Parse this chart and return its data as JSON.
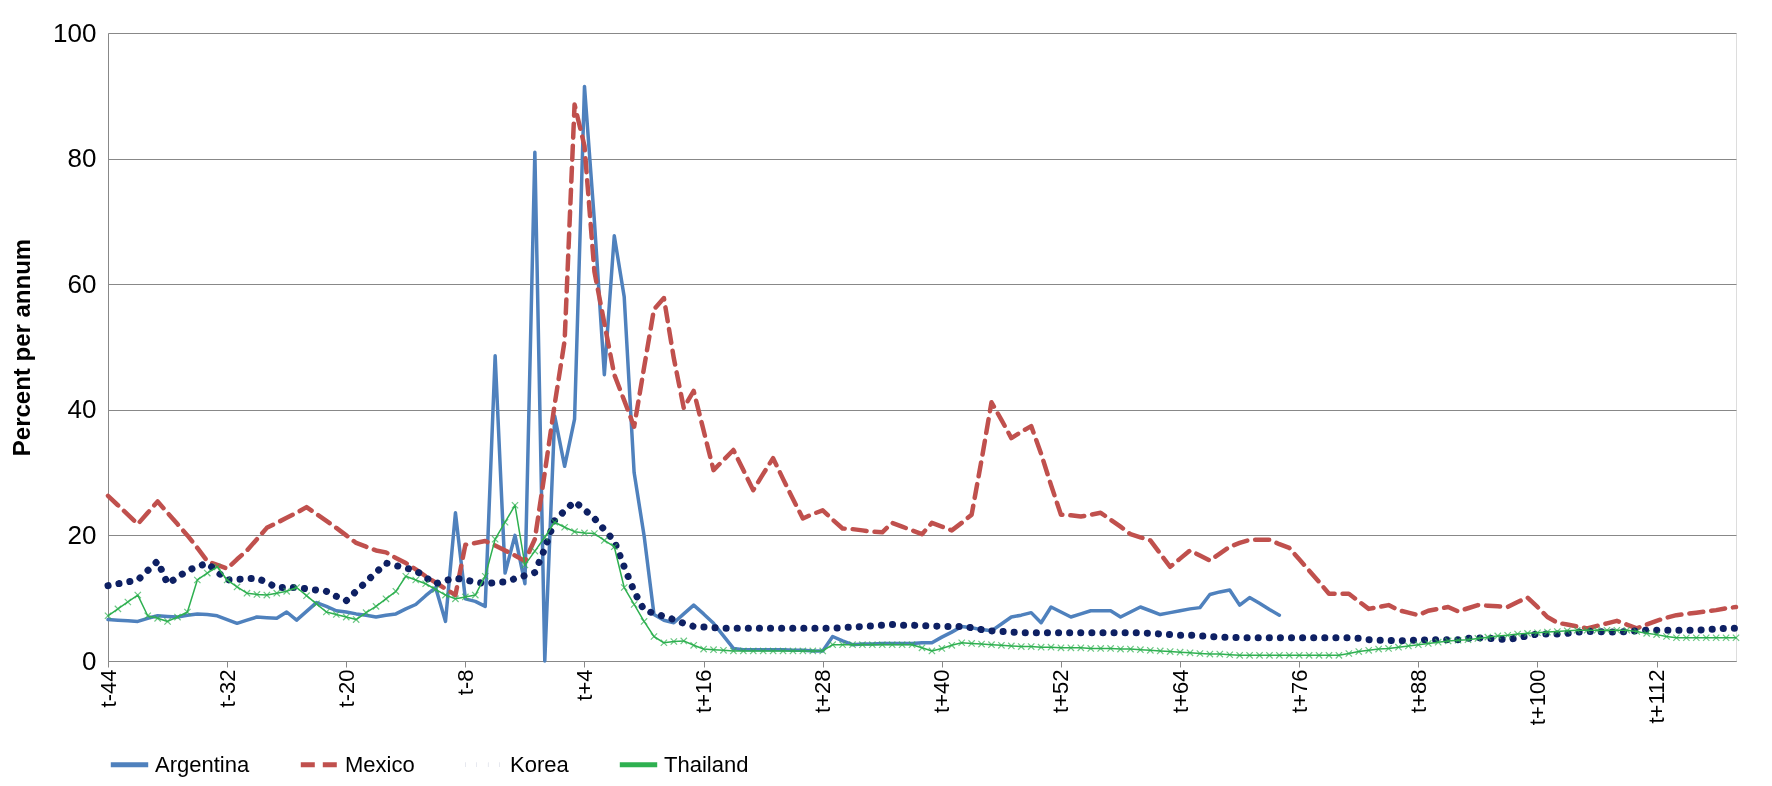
{
  "chart_data": {
    "type": "line",
    "ylabel": "Percent per annum",
    "categories": [
      "t-44",
      null,
      null,
      null,
      null,
      null,
      null,
      null,
      null,
      null,
      null,
      null,
      "t-32",
      null,
      null,
      null,
      null,
      null,
      null,
      null,
      null,
      null,
      null,
      null,
      "t-20",
      null,
      null,
      null,
      null,
      null,
      null,
      null,
      null,
      null,
      null,
      null,
      "t-8",
      null,
      null,
      null,
      null,
      null,
      null,
      null,
      null,
      null,
      null,
      null,
      "t+4",
      null,
      null,
      null,
      null,
      null,
      null,
      null,
      null,
      null,
      null,
      null,
      "t+16",
      null,
      null,
      null,
      null,
      null,
      null,
      null,
      null,
      null,
      null,
      null,
      "t+28",
      null,
      null,
      null,
      null,
      null,
      null,
      null,
      null,
      null,
      null,
      null,
      "t+40",
      null,
      null,
      null,
      null,
      null,
      null,
      null,
      null,
      null,
      null,
      null,
      "t+52",
      null,
      null,
      null,
      null,
      null,
      null,
      null,
      null,
      null,
      null,
      null,
      "t+64",
      null,
      null,
      null,
      null,
      null,
      null,
      null,
      null,
      null,
      null,
      null,
      "t+76",
      null,
      null,
      null,
      null,
      null,
      null,
      null,
      null,
      null,
      null,
      null,
      "t+88",
      null,
      null,
      null,
      null,
      null,
      null,
      null,
      null,
      null,
      null,
      null,
      "t+100",
      null,
      null,
      null,
      null,
      null,
      null,
      null,
      null,
      null,
      null,
      null,
      "t+112",
      null,
      null,
      null,
      null,
      null,
      null,
      null,
      null
    ],
    "ylim": [
      0,
      100
    ],
    "yticks": [
      0,
      20,
      40,
      60,
      80,
      100
    ],
    "grid": "y",
    "legend": "bottom",
    "series": [
      {
        "name": "Argentina",
        "color": "#4f81bd",
        "line_style": "solid",
        "marker": "none",
        "values": [
          6.6,
          6.5,
          6.4,
          6.3,
          6.8,
          7.2,
          7.1,
          7.0,
          7.3,
          7.5,
          7.4,
          7.2,
          6.6,
          6.0,
          6.5,
          7.0,
          6.9,
          6.8,
          7.8,
          6.5,
          7.9,
          9.3,
          8.7,
          8.0,
          7.8,
          7.5,
          7.3,
          7.0,
          7.3,
          7.5,
          8.3,
          9.0,
          10.4,
          11.7,
          6.3,
          23.6,
          9.9,
          9.5,
          8.7,
          48.6,
          14,
          20,
          12.3,
          81,
          0,
          39,
          31,
          38.5,
          91.5,
          70,
          45.6,
          67.7,
          58,
          30,
          20,
          7.4,
          6.5,
          6.1,
          7.5,
          8.9,
          7.5,
          6,
          4,
          2,
          1.8,
          1.8,
          1.8,
          1.8,
          1.8,
          1.7,
          1.7,
          1.6,
          1.6,
          3.9,
          3.2,
          2.6,
          2.7,
          2.7,
          2.8,
          2.8,
          2.8,
          2.8,
          2.9,
          2.9,
          3.8,
          4.6,
          5.5,
          5.3,
          5.0,
          4.8,
          5.9,
          7,
          7.3,
          7.7,
          6.1,
          8.6,
          7.8,
          7,
          7.5,
          8,
          8,
          8,
          7,
          7.8,
          8.6,
          8,
          7.4,
          7.7,
          8.0,
          8.3,
          8.5,
          10.6,
          11.0,
          11.3,
          8.9,
          10.1,
          9.2,
          8.2,
          7.3,
          null,
          null,
          null,
          null,
          null,
          null,
          null,
          null,
          null,
          null,
          null,
          null,
          null,
          null,
          null,
          null,
          null,
          null,
          null,
          null,
          null,
          null,
          null,
          null,
          null,
          null,
          null,
          null,
          null,
          null,
          null,
          null,
          null,
          null,
          null,
          null,
          null,
          null,
          null,
          null,
          null,
          null,
          null,
          null,
          null,
          null
        ]
      },
      {
        "name": "Mexico",
        "color": "#c0504d",
        "line_style": "dashed",
        "marker": "none",
        "values": [
          26.3,
          24.8,
          23.3,
          21.8,
          23.6,
          25.4,
          23.6,
          21.8,
          20,
          18,
          15.9,
          15.3,
          14.7,
          16.2,
          17.6,
          19.4,
          21.2,
          22,
          22.8,
          23.6,
          24.5,
          23.4,
          22.3,
          21.2,
          20,
          18.8,
          18.2,
          17.6,
          17.3,
          16.4,
          15.6,
          14.6,
          13.5,
          12.5,
          11.5,
          10.5,
          18.5,
          18.8,
          19.1,
          18.4,
          17.6,
          16.8,
          15.9,
          19.4,
          30,
          40.9,
          51,
          88.6,
          82,
          62,
          53.8,
          45.6,
          41.5,
          37.3,
          46.7,
          56,
          57.8,
          48.2,
          40.3,
          43,
          36.7,
          30.4,
          32,
          33.6,
          30.4,
          27.2,
          29.8,
          32.3,
          29,
          25.8,
          22.7,
          23.4,
          24,
          22.5,
          21.1,
          21,
          20.8,
          20.6,
          20.5,
          22,
          21.4,
          20.8,
          20.2,
          22,
          21.4,
          20.8,
          22,
          23.3,
          32,
          41.2,
          38.4,
          35.5,
          36.5,
          37.4,
          33,
          28,
          23.3,
          23.2,
          23,
          23.3,
          23.6,
          22.5,
          21.4,
          20.2,
          19.7,
          19.2,
          17.1,
          15,
          16.3,
          17.6,
          16.8,
          16,
          17.1,
          18.2,
          18.8,
          19.3,
          19.3,
          19.3,
          18.6,
          18,
          16.2,
          14.4,
          12.6,
          10.7,
          10.7,
          10.7,
          9.5,
          8.3,
          8.6,
          8.9,
          8.1,
          7.7,
          7.3,
          8,
          8.3,
          8.6,
          7.9,
          8.4,
          8.9,
          8.8,
          8.7,
          8.6,
          9.4,
          10.1,
          8.6,
          7,
          6.1,
          5.8,
          5.5,
          5.2,
          5.6,
          6,
          6.4,
          5.8,
          5.2,
          5.8,
          6.4,
          6.9,
          7.3,
          7.5,
          7.7,
          7.9,
          8.1,
          8.4,
          8.6
        ]
      },
      {
        "name": "Korea",
        "color": "#0e2063",
        "line_style": "dotted",
        "marker": "none",
        "values": [
          12,
          12.3,
          12.6,
          12.9,
          14.4,
          15.9,
          12.3,
          13.3,
          14.4,
          15,
          15.6,
          14.2,
          12.9,
          13,
          13.1,
          13.2,
          12.5,
          11.7,
          11.7,
          11.7,
          11.5,
          11.3,
          11.1,
          10.3,
          9.6,
          11.1,
          12.6,
          14.1,
          15.6,
          15.2,
          14.8,
          14.4,
          13.3,
          12.3,
          12.8,
          13.2,
          12.9,
          12.6,
          12.3,
          12.5,
          12.6,
          13.1,
          13.6,
          14.1,
          17.9,
          22.4,
          23.9,
          25.4,
          24.1,
          22.7,
          20.9,
          19.1,
          15,
          11.1,
          8.1,
          7.6,
          7.1,
          6.6,
          6,
          5.5,
          5.4,
          5.3,
          5.2,
          5.2,
          5.2,
          5.2,
          5.2,
          5.2,
          5.2,
          5.2,
          5.2,
          5.2,
          5.2,
          5.2,
          5.3,
          5.4,
          5.5,
          5.6,
          5.7,
          5.8,
          5.7,
          5.7,
          5.6,
          5.6,
          5.5,
          5.5,
          5.5,
          5.3,
          5,
          4.8,
          4.7,
          4.6,
          4.5,
          4.5,
          4.5,
          4.5,
          4.5,
          4.5,
          4.5,
          4.5,
          4.5,
          4.5,
          4.5,
          4.5,
          4.5,
          4.4,
          4.3,
          4.2,
          4.1,
          4.1,
          4,
          3.9,
          3.8,
          3.8,
          3.7,
          3.7,
          3.7,
          3.7,
          3.7,
          3.7,
          3.7,
          3.7,
          3.7,
          3.7,
          3.7,
          3.7,
          3.6,
          3.4,
          3.3,
          3.3,
          3.2,
          3.3,
          3.3,
          3.4,
          3.4,
          3.4,
          3.4,
          3.6,
          3.7,
          3.6,
          3.5,
          3.4,
          3.7,
          4,
          4.3,
          4.3,
          4.3,
          4.4,
          4.6,
          4.7,
          4.7,
          4.6,
          4.6,
          4.7,
          4.8,
          4.9,
          4.9,
          4.9,
          4.9,
          4.9,
          4.9,
          5,
          5.1,
          5.2,
          5.2
        ]
      },
      {
        "name": "Thailand",
        "color": "#2eb050",
        "line_style": "solid",
        "marker": "cross",
        "values": [
          7.2,
          8.3,
          9.4,
          10.5,
          7.2,
          6.8,
          6.3,
          7,
          7.8,
          12.9,
          14,
          15,
          12.9,
          11.8,
          10.8,
          10.6,
          10.5,
          10.8,
          11.1,
          11.7,
          10.4,
          9.1,
          7.8,
          7.4,
          7,
          6.6,
          7.7,
          8.7,
          9.9,
          11.1,
          13.5,
          12.9,
          12.3,
          11.4,
          10.5,
          9.9,
          10.2,
          10.5,
          13.5,
          19.4,
          22.1,
          24.8,
          15.3,
          17.5,
          19.7,
          22.1,
          21.3,
          20.6,
          20.4,
          20.3,
          19.2,
          18.2,
          11.7,
          9,
          6.3,
          3.9,
          2.9,
          3.1,
          3.2,
          2.5,
          1.9,
          1.8,
          1.7,
          1.6,
          1.6,
          1.6,
          1.6,
          1.6,
          1.6,
          1.6,
          1.6,
          1.6,
          1.6,
          2.6,
          2.6,
          2.6,
          2.6,
          2.6,
          2.6,
          2.6,
          2.6,
          2.6,
          2.1,
          1.6,
          2,
          2.5,
          2.9,
          2.8,
          2.7,
          2.6,
          2.5,
          2.4,
          2.3,
          2.3,
          2.2,
          2.2,
          2.1,
          2.1,
          2.1,
          2,
          2,
          2,
          1.9,
          1.9,
          1.8,
          1.7,
          1.6,
          1.5,
          1.4,
          1.3,
          1.2,
          1.1,
          1.1,
          1,
          0.9,
          0.9,
          0.9,
          0.9,
          0.9,
          0.9,
          0.9,
          0.9,
          0.9,
          0.9,
          0.9,
          1.2,
          1.5,
          1.7,
          1.9,
          2,
          2.2,
          2.4,
          2.6,
          2.8,
          3,
          3.2,
          3.3,
          3.4,
          3.6,
          3.8,
          4,
          4.1,
          4.3,
          4.4,
          4.5,
          4.6,
          4.7,
          4.8,
          4.9,
          4.9,
          4.9,
          4.9,
          4.9,
          4.9,
          4.7,
          4.4,
          4.2,
          3.9,
          3.7,
          3.7,
          3.7,
          3.7,
          3.7,
          3.7,
          3.7
        ]
      }
    ]
  }
}
